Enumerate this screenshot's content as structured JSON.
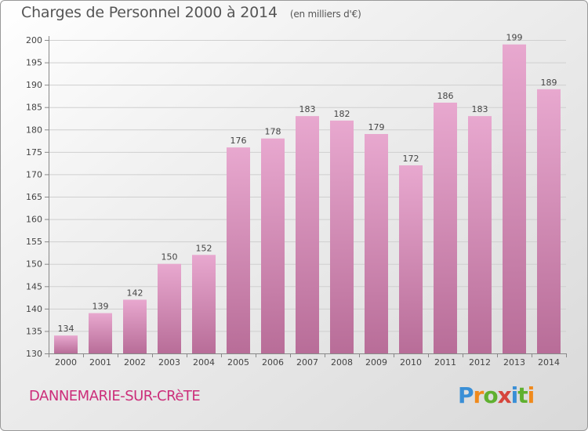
{
  "title": "Charges de Personnel 2000 à 2014",
  "subtitle": "(en milliers d'€)",
  "place": "DANNEMARIE-SUR-CRèTE",
  "logo": {
    "letters": [
      "P",
      "r",
      "o",
      "x",
      "i",
      "t",
      "i"
    ],
    "colors": [
      "#3a8fd6",
      "#f08a1c",
      "#5fb030",
      "#d6453c",
      "#3a8fd6",
      "#5fb030",
      "#f08a1c"
    ]
  },
  "chart_data": {
    "type": "bar",
    "title": "Charges de Personnel 2000 à 2014",
    "ylabel": "(en milliers d'€)",
    "xlabel": "",
    "categories": [
      "2000",
      "2001",
      "2002",
      "2003",
      "2004",
      "2005",
      "2006",
      "2007",
      "2008",
      "2009",
      "2010",
      "2011",
      "2012",
      "2013",
      "2014"
    ],
    "values": [
      134,
      139,
      142,
      150,
      152,
      176,
      178,
      183,
      182,
      179,
      172,
      186,
      183,
      199,
      189
    ],
    "ylim": [
      130,
      200
    ],
    "yticks": [
      130,
      135,
      140,
      145,
      150,
      155,
      160,
      165,
      170,
      175,
      180,
      185,
      190,
      195,
      200
    ],
    "grid": true,
    "bar_color_top": "#e8a8cf",
    "bar_color_bottom": "#b86d98"
  }
}
